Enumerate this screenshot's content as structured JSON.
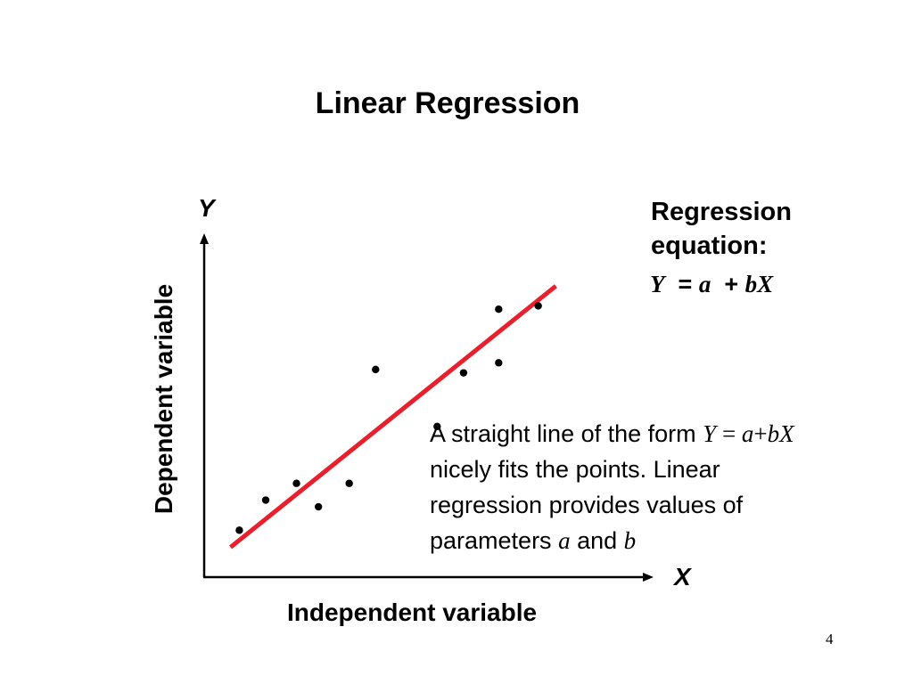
{
  "slide": {
    "title": "Linear Regression",
    "page_number": "4"
  },
  "axes": {
    "y_symbol": "Y",
    "x_symbol": "X",
    "y_label": "Dependent variable",
    "x_label": "Independent variable"
  },
  "equation": {
    "heading_line1": "Regression",
    "heading_line2": "equation:",
    "y_var": "Y",
    "equals": "=",
    "a_param": "a",
    "plus": "+",
    "bx_term": "bX"
  },
  "description": {
    "part1": "A straight line of the form ",
    "y_var": "Y",
    "equals": " = ",
    "a_var": "a",
    "plus": "+",
    "bx": "bX",
    "line2": "nicely fits the points. Linear",
    "line3": "regression provides values of",
    "part4": "parameters ",
    "a_param": "a",
    "and_text": " and ",
    "b_param": "b"
  },
  "colors": {
    "regression_line": "#e8202e",
    "axes": "#000000",
    "points": "#000000",
    "text": "#000000"
  },
  "plot": {
    "points": [
      {
        "x": 0.08,
        "y": 0.14
      },
      {
        "x": 0.14,
        "y": 0.23
      },
      {
        "x": 0.21,
        "y": 0.28
      },
      {
        "x": 0.26,
        "y": 0.21
      },
      {
        "x": 0.33,
        "y": 0.28
      },
      {
        "x": 0.39,
        "y": 0.62
      },
      {
        "x": 0.53,
        "y": 0.45
      },
      {
        "x": 0.59,
        "y": 0.61
      },
      {
        "x": 0.67,
        "y": 0.64
      },
      {
        "x": 0.67,
        "y": 0.8
      },
      {
        "x": 0.76,
        "y": 0.81
      }
    ],
    "regression_line": {
      "intercept": 0.026,
      "slope": 1.054,
      "x_start": 0.06,
      "x_end": 0.8
    }
  }
}
